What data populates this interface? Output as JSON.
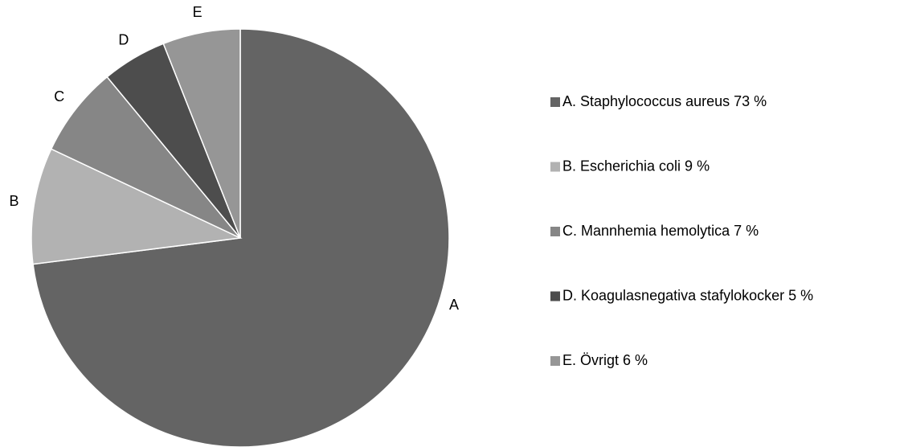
{
  "chart_data": {
    "type": "pie",
    "categories": [
      "A",
      "B",
      "C",
      "D",
      "E"
    ],
    "labels": [
      "A. Staphylococcus aureus 73 %",
      "B. Escherichia coli 9 %",
      "C. Mannhemia hemolytica 7 %",
      "D. Koagulasnegativa stafylokocker 5 %",
      "E. Övrigt 6 %"
    ],
    "values": [
      73,
      9,
      7,
      5,
      6
    ],
    "colors": [
      "#646464",
      "#b2b2b2",
      "#868686",
      "#4d4d4d",
      "#969696"
    ],
    "legend": "right"
  }
}
